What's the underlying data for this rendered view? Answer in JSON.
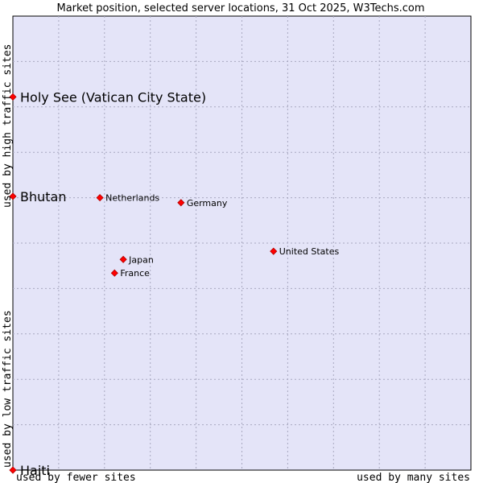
{
  "chart_data": {
    "type": "scatter",
    "title": "Market position, selected server locations, 31 Oct 2025, W3Techs.com",
    "xlabel_left": "used by fewer sites",
    "xlabel_right": "used by many sites",
    "ylabel_bottom": "used by low traffic sites",
    "ylabel_top": "used by high traffic sites",
    "xlim": [
      0,
      100
    ],
    "ylim": [
      0,
      100
    ],
    "grid": true,
    "marker_color": "#ff0000",
    "plot_background": "#e4e4f8",
    "points": [
      {
        "name": "Holy See (Vatican City State)",
        "x": 0,
        "y": 82.2,
        "size": "large"
      },
      {
        "name": "Bhutan",
        "x": 0,
        "y": 60.3,
        "size": "large"
      },
      {
        "name": "Haiti",
        "x": 0,
        "y": 0,
        "size": "large"
      },
      {
        "name": "Netherlands",
        "x": 19.0,
        "y": 60.0,
        "size": "small"
      },
      {
        "name": "Germany",
        "x": 36.7,
        "y": 58.9,
        "size": "small"
      },
      {
        "name": "United States",
        "x": 56.9,
        "y": 48.2,
        "size": "small"
      },
      {
        "name": "Japan",
        "x": 24.1,
        "y": 46.4,
        "size": "small"
      },
      {
        "name": "France",
        "x": 22.2,
        "y": 43.4,
        "size": "small"
      }
    ]
  }
}
